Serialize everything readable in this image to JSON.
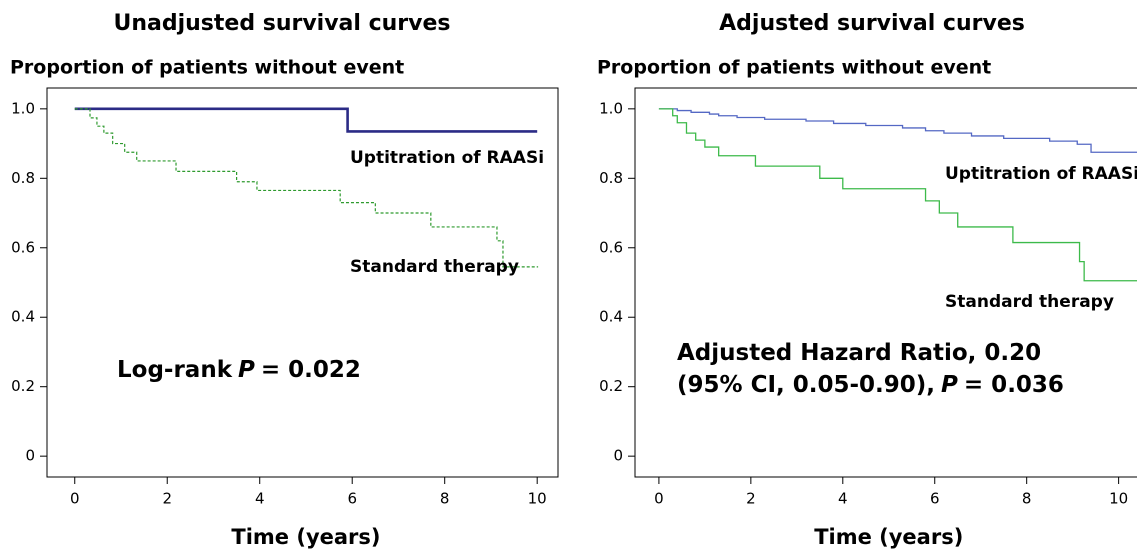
{
  "chart_data": [
    {
      "type": "line",
      "step": true,
      "title": "Unadjusted survival curves",
      "y_label": "Proportion of patients without event",
      "x_label": "Time (years)",
      "xlim": [
        -0.6,
        10.45
      ],
      "ylim": [
        -0.06,
        1.06
      ],
      "xticks": [
        0,
        2,
        4,
        6,
        8,
        10
      ],
      "yticks": [
        0,
        0.2,
        0.4,
        0.6,
        0.8,
        {
          "value": 1,
          "label": "1.0"
        }
      ],
      "annotation": [
        [
          "Log-rank",
          "P",
          "= 0.022"
        ]
      ],
      "series": [
        {
          "name": "Uptitration of RAASi",
          "color": "#2b2b86",
          "dashed": false,
          "x": [
            0,
            5.9,
            10.0
          ],
          "values": [
            1.0,
            0.935,
            0.935
          ]
        },
        {
          "name": "Standard therapy",
          "color": "#2e9a2e",
          "dashed": true,
          "x": [
            0,
            0.33,
            0.48,
            0.63,
            0.82,
            1.08,
            1.34,
            2.19,
            3.5,
            3.94,
            5.74,
            6.5,
            7.7,
            9.13,
            9.26,
            10.02
          ],
          "values": [
            1.0,
            0.974,
            0.95,
            0.93,
            0.9,
            0.875,
            0.85,
            0.82,
            0.79,
            0.765,
            0.73,
            0.7,
            0.66,
            0.62,
            0.545,
            0.545
          ]
        }
      ]
    },
    {
      "type": "line",
      "step": true,
      "title": "Adjusted survival curves",
      "y_label": "Proportion of patients without event",
      "x_label": "Time (years)",
      "xlim": [
        -0.52,
        10.9
      ],
      "ylim": [
        -0.06,
        1.06
      ],
      "xticks": [
        0,
        2,
        4,
        6,
        8,
        10
      ],
      "yticks": [
        0,
        0.2,
        0.4,
        0.6,
        0.8,
        {
          "value": 1,
          "label": "1.0"
        }
      ],
      "annotation": [
        [
          "Adjusted Hazard Ratio, 0.20"
        ],
        [
          "(95% CI, 0.05-0.90),",
          "P",
          "= 0.036"
        ]
      ],
      "series": [
        {
          "name": "Uptitration of RAASi",
          "color": "#5468c4",
          "dashed": false,
          "x": [
            0,
            0.4,
            0.7,
            1.1,
            1.3,
            1.7,
            2.3,
            3.2,
            3.8,
            4.5,
            5.3,
            5.8,
            6.2,
            6.8,
            7.5,
            8.5,
            9.1,
            9.4,
            10.9
          ],
          "values": [
            1.0,
            0.995,
            0.99,
            0.985,
            0.98,
            0.975,
            0.97,
            0.965,
            0.958,
            0.952,
            0.945,
            0.937,
            0.93,
            0.922,
            0.915,
            0.907,
            0.898,
            0.875,
            0.875
          ]
        },
        {
          "name": "Standard therapy",
          "color": "#3dba4a",
          "dashed": false,
          "x": [
            0,
            0.3,
            0.4,
            0.6,
            0.8,
            1.0,
            1.3,
            2.1,
            3.5,
            4.0,
            5.8,
            6.1,
            6.5,
            7.7,
            9.15,
            9.25,
            10.9
          ],
          "values": [
            1.0,
            0.98,
            0.96,
            0.93,
            0.91,
            0.89,
            0.865,
            0.835,
            0.8,
            0.77,
            0.735,
            0.7,
            0.66,
            0.615,
            0.56,
            0.505,
            0.505
          ]
        }
      ]
    }
  ]
}
